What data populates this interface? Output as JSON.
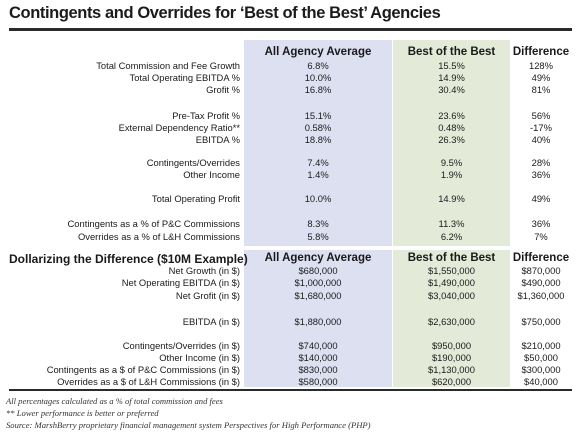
{
  "title": "Contingents and Overrides for ‘Best of the Best’ Agencies",
  "headers": {
    "all_agency_average": "All Agency Average",
    "best_of_the_best": "Best of the Best",
    "difference": "Difference"
  },
  "top_table": [
    {
      "label": "Total Commission and Fee Growth",
      "avg": "6.8%",
      "best": "15.5%",
      "diff": "128%"
    },
    {
      "label": "Total Operating EBITDA %",
      "avg": "10.0%",
      "best": "14.9%",
      "diff": "49%"
    },
    {
      "label": "Grofit %",
      "avg": "16.8%",
      "best": "30.4%",
      "diff": "81%"
    },
    {
      "label": "Pre-Tax Profit %",
      "avg": "15.1%",
      "best": "23.6%",
      "diff": "56%"
    },
    {
      "label": "External Dependency Ratio**",
      "avg": "0.58%",
      "best": "0.48%",
      "diff": "-17%"
    },
    {
      "label": "EBITDA %",
      "avg": "18.8%",
      "best": "26.3%",
      "diff": "40%"
    },
    {
      "label": "Contingents/Overrides",
      "avg": "7.4%",
      "best": "9.5%",
      "diff": "28%"
    },
    {
      "label": "Other Income",
      "avg": "1.4%",
      "best": "1.9%",
      "diff": "36%"
    },
    {
      "label": "Total Operating Profit",
      "avg": "10.0%",
      "best": "14.9%",
      "diff": "49%"
    },
    {
      "label": "Contingents as a % of P&C Commissions",
      "avg": "8.3%",
      "best": "11.3%",
      "diff": "36%"
    },
    {
      "label": "Overrides as a % of L&H Commissions",
      "avg": "5.8%",
      "best": "6.2%",
      "diff": "7%"
    }
  ],
  "bottom_title": "Dollarizing the Difference ($10M Example)",
  "bottom_table": [
    {
      "label": "Net Growth (in $)",
      "avg": "$680,000",
      "best": "$1,550,000",
      "diff": "$870,000"
    },
    {
      "label": "Net Operating EBITDA (in $)",
      "avg": "$1,000,000",
      "best": "$1,490,000",
      "diff": "$490,000"
    },
    {
      "label": "Net Grofit (in $)",
      "avg": "$1,680,000",
      "best": "$3,040,000",
      "diff": "$1,360,000"
    },
    {
      "label": "EBITDA (in $)",
      "avg": "$1,880,000",
      "best": "$2,630,000",
      "diff": "$750,000"
    },
    {
      "label": "Contingents/Overrides (in $)",
      "avg": "$740,000",
      "best": "$950,000",
      "diff": "$210,000"
    },
    {
      "label": "Other Income (in $)",
      "avg": "$140,000",
      "best": "$190,000",
      "diff": "$50,000"
    },
    {
      "label": "Contingents as a $ of P&C Commissions (in $)",
      "avg": "$830,000",
      "best": "$1,130,000",
      "diff": "$300,000"
    },
    {
      "label": "Overrides as a $ of L&H Commissions (in $)",
      "avg": "$580,000",
      "best": "$620,000",
      "diff": "$40,000"
    }
  ],
  "footnotes": [
    "All percentages calculated as a % of total commission and fees",
    "** Lower performance is better or preferred",
    "Source: MarshBerry proprietary financial management system Perspectives for High Performance (PHP)"
  ],
  "colors": {
    "avg_band": "#dde0f1",
    "best_band": "#e3ead8",
    "rule": "#2a2a2a"
  }
}
